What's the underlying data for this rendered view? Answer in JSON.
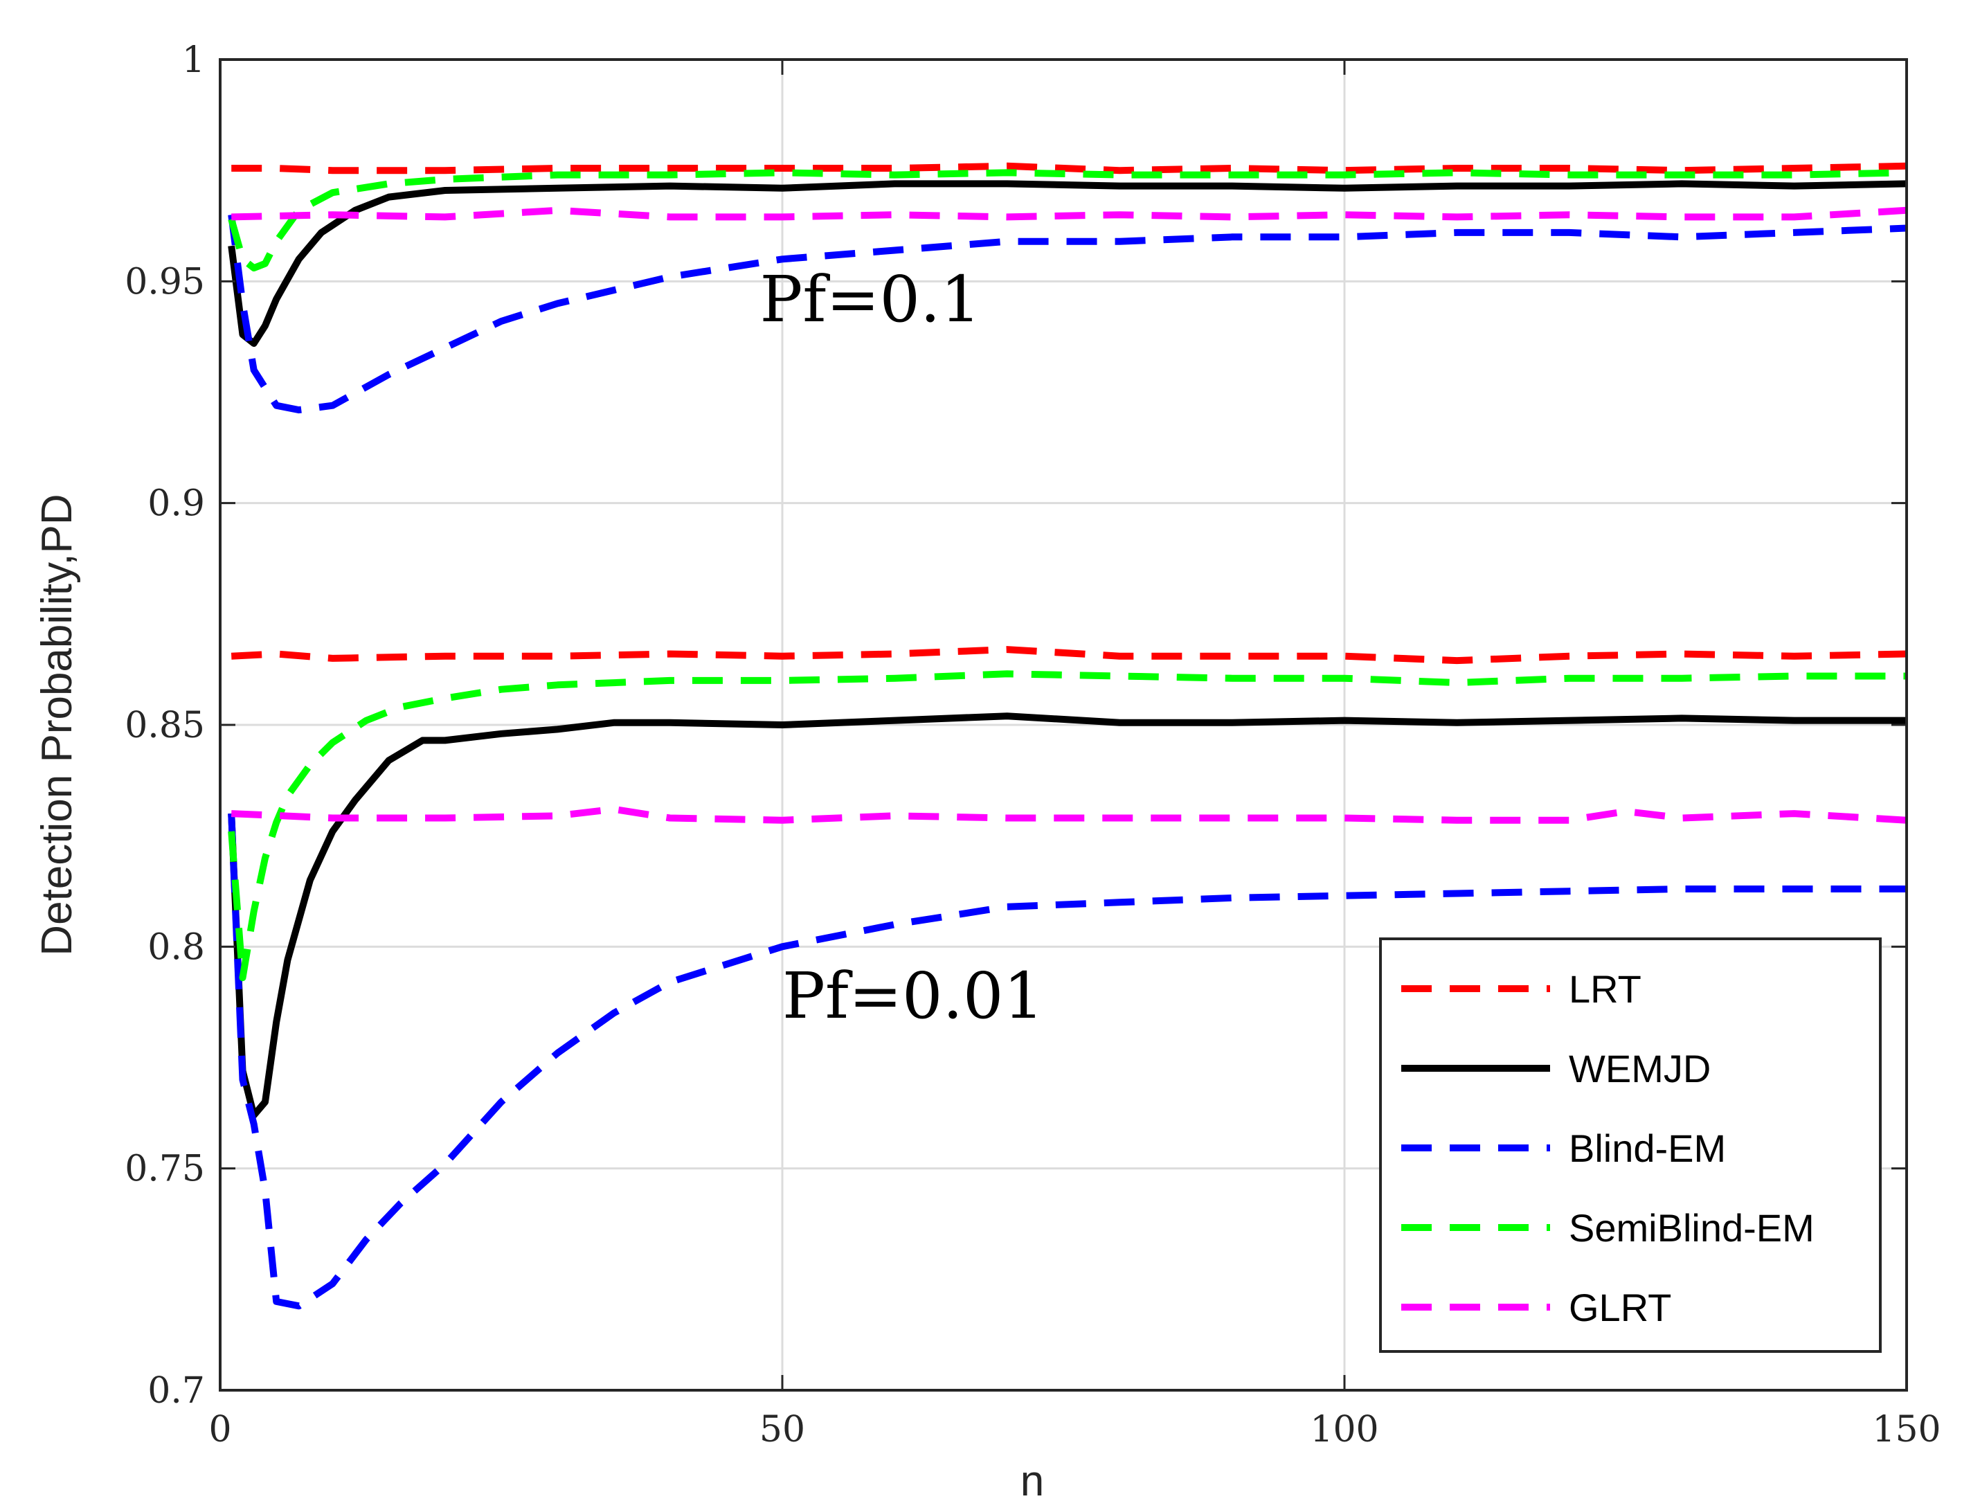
{
  "chart_data": {
    "type": "line",
    "title": "",
    "xlabel": "n",
    "ylabel": "Detection Probability,PD",
    "xlim": [
      0,
      150
    ],
    "ylim": [
      0.7,
      1.0
    ],
    "xticks": [
      0,
      50,
      100,
      150
    ],
    "xtick_labels": [
      "0",
      "50",
      "100",
      "150"
    ],
    "yticks": [
      0.7,
      0.75,
      0.8,
      0.85,
      0.9,
      0.95,
      1.0
    ],
    "ytick_labels": [
      "0.7",
      "0.75",
      "0.8",
      "0.85",
      "0.9",
      "0.95",
      "1"
    ],
    "grid": true,
    "legend_position": "bottom-right",
    "annotations": [
      {
        "text": "Pf=0.1",
        "x": 48,
        "y": 0.941
      },
      {
        "text": "Pf=0.01",
        "x": 50,
        "y": 0.784
      }
    ],
    "legend": [
      {
        "label": "LRT",
        "color": "#ff0000",
        "style": "dashed"
      },
      {
        "label": "WEMJD",
        "color": "#000000",
        "style": "solid"
      },
      {
        "label": "Blind-EM",
        "color": "#0000ff",
        "style": "dashed"
      },
      {
        "label": "SemiBlind-EM",
        "color": "#00ff00",
        "style": "dashed"
      },
      {
        "label": "GLRT",
        "color": "#ff00ff",
        "style": "dashed"
      }
    ],
    "series": [
      {
        "name": "LRT",
        "group": "Pf=0.1",
        "color": "#ff0000",
        "style": "dashed",
        "x": [
          1,
          5,
          10,
          20,
          30,
          40,
          50,
          60,
          70,
          80,
          90,
          100,
          110,
          120,
          130,
          140,
          150
        ],
        "y": [
          0.9755,
          0.9755,
          0.975,
          0.975,
          0.9755,
          0.9755,
          0.9755,
          0.9755,
          0.976,
          0.975,
          0.9755,
          0.975,
          0.9755,
          0.9755,
          0.975,
          0.9755,
          0.976
        ]
      },
      {
        "name": "WEMJD",
        "group": "Pf=0.1",
        "color": "#000000",
        "style": "solid",
        "x": [
          1,
          2,
          3,
          4,
          5,
          7,
          9,
          12,
          15,
          20,
          30,
          40,
          50,
          60,
          70,
          80,
          90,
          100,
          110,
          120,
          130,
          140,
          150
        ],
        "y": [
          0.958,
          0.938,
          0.936,
          0.94,
          0.946,
          0.955,
          0.961,
          0.966,
          0.969,
          0.9705,
          0.971,
          0.9715,
          0.971,
          0.972,
          0.972,
          0.9715,
          0.9715,
          0.971,
          0.9715,
          0.9715,
          0.972,
          0.9715,
          0.972
        ]
      },
      {
        "name": "Blind-EM",
        "group": "Pf=0.1",
        "color": "#0000ff",
        "style": "dashed",
        "x": [
          1,
          2,
          3,
          5,
          7,
          10,
          15,
          20,
          25,
          30,
          35,
          40,
          50,
          60,
          70,
          80,
          90,
          100,
          110,
          120,
          130,
          140,
          150
        ],
        "y": [
          0.965,
          0.945,
          0.93,
          0.922,
          0.921,
          0.922,
          0.929,
          0.935,
          0.941,
          0.945,
          0.948,
          0.951,
          0.955,
          0.957,
          0.959,
          0.959,
          0.96,
          0.96,
          0.961,
          0.961,
          0.96,
          0.961,
          0.962
        ]
      },
      {
        "name": "SemiBlind-EM",
        "group": "Pf=0.1",
        "color": "#00ff00",
        "style": "dashed",
        "x": [
          1,
          2,
          3,
          4,
          5,
          7,
          10,
          15,
          20,
          30,
          40,
          50,
          60,
          70,
          80,
          90,
          100,
          110,
          120,
          130,
          140,
          150
        ],
        "y": [
          0.964,
          0.955,
          0.953,
          0.954,
          0.959,
          0.966,
          0.97,
          0.972,
          0.973,
          0.974,
          0.974,
          0.9745,
          0.974,
          0.9745,
          0.974,
          0.974,
          0.974,
          0.9745,
          0.974,
          0.974,
          0.974,
          0.9745
        ]
      },
      {
        "name": "GLRT",
        "group": "Pf=0.1",
        "color": "#ff00ff",
        "style": "dashed",
        "x": [
          1,
          10,
          20,
          30,
          40,
          50,
          60,
          70,
          80,
          90,
          100,
          110,
          120,
          130,
          140,
          150
        ],
        "y": [
          0.9645,
          0.965,
          0.9645,
          0.966,
          0.9645,
          0.9645,
          0.965,
          0.9645,
          0.965,
          0.9645,
          0.965,
          0.9645,
          0.965,
          0.9645,
          0.9645,
          0.966
        ]
      },
      {
        "name": "LRT",
        "group": "Pf=0.01",
        "color": "#ff0000",
        "style": "dashed",
        "x": [
          1,
          5,
          10,
          20,
          30,
          40,
          50,
          60,
          70,
          80,
          90,
          100,
          110,
          120,
          130,
          140,
          150
        ],
        "y": [
          0.8655,
          0.866,
          0.865,
          0.8655,
          0.8655,
          0.866,
          0.8655,
          0.866,
          0.867,
          0.8655,
          0.8655,
          0.8655,
          0.8645,
          0.8655,
          0.866,
          0.8655,
          0.866
        ]
      },
      {
        "name": "WEMJD",
        "group": "Pf=0.01",
        "color": "#000000",
        "style": "solid",
        "x": [
          1,
          2,
          3,
          4,
          5,
          6,
          8,
          10,
          12,
          15,
          18,
          20,
          25,
          30,
          35,
          40,
          50,
          60,
          70,
          80,
          90,
          100,
          110,
          120,
          130,
          140,
          150
        ],
        "y": [
          0.83,
          0.772,
          0.762,
          0.765,
          0.783,
          0.797,
          0.815,
          0.826,
          0.833,
          0.842,
          0.8465,
          0.8465,
          0.848,
          0.849,
          0.8505,
          0.8505,
          0.85,
          0.851,
          0.852,
          0.8505,
          0.8505,
          0.851,
          0.8505,
          0.851,
          0.8515,
          0.851,
          0.851
        ]
      },
      {
        "name": "Blind-EM",
        "group": "Pf=0.01",
        "color": "#0000ff",
        "style": "dashed",
        "x": [
          1,
          2,
          3,
          4,
          5,
          7,
          10,
          13,
          16,
          20,
          25,
          30,
          35,
          40,
          50,
          60,
          70,
          80,
          90,
          100,
          110,
          120,
          130,
          140,
          150
        ],
        "y": [
          0.83,
          0.77,
          0.76,
          0.745,
          0.72,
          0.719,
          0.724,
          0.734,
          0.742,
          0.751,
          0.765,
          0.776,
          0.785,
          0.792,
          0.8,
          0.805,
          0.809,
          0.81,
          0.811,
          0.8115,
          0.812,
          0.8125,
          0.813,
          0.813,
          0.813
        ]
      },
      {
        "name": "SemiBlind-EM",
        "group": "Pf=0.01",
        "color": "#00ff00",
        "style": "dashed",
        "x": [
          1,
          2,
          3,
          4,
          5,
          6,
          8,
          10,
          13,
          16,
          20,
          25,
          30,
          40,
          50,
          60,
          70,
          80,
          90,
          100,
          110,
          120,
          130,
          140,
          150
        ],
        "y": [
          0.826,
          0.793,
          0.808,
          0.82,
          0.828,
          0.834,
          0.841,
          0.846,
          0.851,
          0.854,
          0.856,
          0.858,
          0.859,
          0.86,
          0.86,
          0.8605,
          0.8615,
          0.861,
          0.8605,
          0.8605,
          0.8595,
          0.8605,
          0.8605,
          0.861,
          0.861
        ]
      },
      {
        "name": "GLRT",
        "group": "Pf=0.01",
        "color": "#ff00ff",
        "style": "dashed",
        "x": [
          1,
          10,
          20,
          30,
          35,
          40,
          50,
          60,
          70,
          80,
          90,
          100,
          110,
          120,
          125,
          130,
          140,
          150
        ],
        "y": [
          0.83,
          0.829,
          0.829,
          0.8295,
          0.831,
          0.829,
          0.8285,
          0.8295,
          0.829,
          0.829,
          0.829,
          0.829,
          0.8285,
          0.8285,
          0.8305,
          0.829,
          0.83,
          0.8285
        ]
      }
    ]
  }
}
